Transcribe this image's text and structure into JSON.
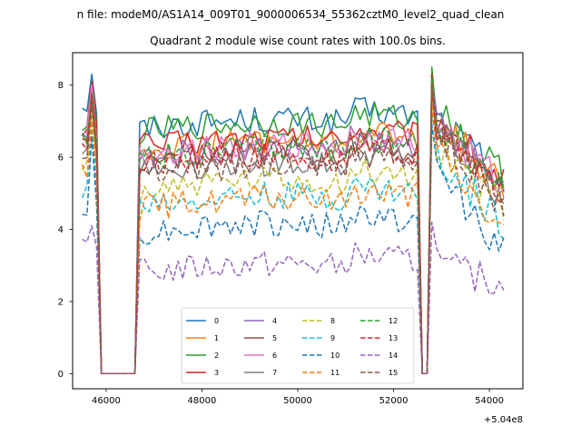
{
  "chart_data": {
    "type": "line",
    "suptitle": "n file: modeM0/AS1A14_009T01_9000006534_55362cztM0_level2_quad_clean",
    "title": "Quadrant 2 module wise count rates with 100.0s bins.",
    "xlabel": "",
    "ylabel": "",
    "x_offset_label": "+5.04e8",
    "xlim": [
      45300,
      54700
    ],
    "ylim": [
      -0.42,
      8.9
    ],
    "xticks": [
      46000,
      48000,
      50000,
      52000,
      54000
    ],
    "xtick_labels": [
      "46000",
      "48000",
      "50000",
      "52000",
      "54000"
    ],
    "yticks": [
      0,
      2,
      4,
      6,
      8
    ],
    "ytick_labels": [
      "0",
      "2",
      "4",
      "6",
      "8"
    ],
    "x_start": 45500,
    "x_step": 100,
    "n_points": 89,
    "gaps": [
      [
        45900,
        46600
      ],
      [
        52600,
        52700
      ]
    ],
    "legend_position": "lower center",
    "series": [
      {
        "name": "0",
        "color": "#1f77b4",
        "style": "solid",
        "level": 6.8,
        "start": 7.4,
        "peak1": 8.3,
        "peak2": 8.3,
        "end": 5.4
      },
      {
        "name": "1",
        "color": "#ff7f0e",
        "style": "solid",
        "level": 6.2,
        "start": 6.6,
        "peak1": 8.0,
        "peak2": 8.2,
        "end": 5.2
      },
      {
        "name": "2",
        "color": "#2ca02c",
        "style": "solid",
        "level": 6.7,
        "start": 6.9,
        "peak1": 8.1,
        "peak2": 8.5,
        "end": 5.5
      },
      {
        "name": "3",
        "color": "#d62728",
        "style": "solid",
        "level": 6.3,
        "start": 6.8,
        "peak1": 8.1,
        "peak2": 8.3,
        "end": 5.3
      },
      {
        "name": "4",
        "color": "#9467bd",
        "style": "solid",
        "level": 6.0,
        "start": 6.5,
        "peak1": 7.9,
        "peak2": 8.1,
        "end": 5.1
      },
      {
        "name": "5",
        "color": "#8c564b",
        "style": "solid",
        "level": 5.9,
        "start": 6.4,
        "peak1": 7.8,
        "peak2": 8.0,
        "end": 5.0
      },
      {
        "name": "6",
        "color": "#e377c2",
        "style": "solid",
        "level": 6.1,
        "start": 6.6,
        "peak1": 8.0,
        "peak2": 8.1,
        "end": 5.2
      },
      {
        "name": "7",
        "color": "#7f7f7f",
        "style": "solid",
        "level": 5.6,
        "start": 6.1,
        "peak1": 7.6,
        "peak2": 7.9,
        "end": 4.9
      },
      {
        "name": "8",
        "color": "#bcbd22",
        "style": "dashed",
        "level": 5.1,
        "start": 5.7,
        "peak1": 7.2,
        "peak2": 7.6,
        "end": 4.6
      },
      {
        "name": "9",
        "color": "#17becf",
        "style": "dashed",
        "level": 4.7,
        "start": 5.0,
        "peak1": 6.8,
        "peak2": 7.2,
        "end": 4.2
      },
      {
        "name": "10",
        "color": "#1f77b4",
        "style": "dashed",
        "level": 3.9,
        "start": 4.6,
        "peak1": 6.6,
        "peak2": 6.9,
        "end": 3.4
      },
      {
        "name": "11",
        "color": "#ff7f0e",
        "style": "dashed",
        "level": 4.6,
        "start": 5.6,
        "peak1": 7.0,
        "peak2": 7.4,
        "end": 3.9
      },
      {
        "name": "12",
        "color": "#2ca02c",
        "style": "dashed",
        "level": 6.0,
        "start": 6.5,
        "peak1": 7.8,
        "peak2": 8.2,
        "end": 5.0
      },
      {
        "name": "13",
        "color": "#d62728",
        "style": "dashed",
        "level": 5.8,
        "start": 6.3,
        "peak1": 7.7,
        "peak2": 8.0,
        "end": 4.9
      },
      {
        "name": "14",
        "color": "#9467bd",
        "style": "dashed",
        "level": 2.8,
        "start": 3.7,
        "peak1": 4.1,
        "peak2": 4.2,
        "end": 2.5
      },
      {
        "name": "15",
        "color": "#8c564b",
        "style": "dashed",
        "level": 5.5,
        "start": 6.0,
        "peak1": 7.4,
        "peak2": 7.9,
        "end": 4.7
      }
    ]
  }
}
